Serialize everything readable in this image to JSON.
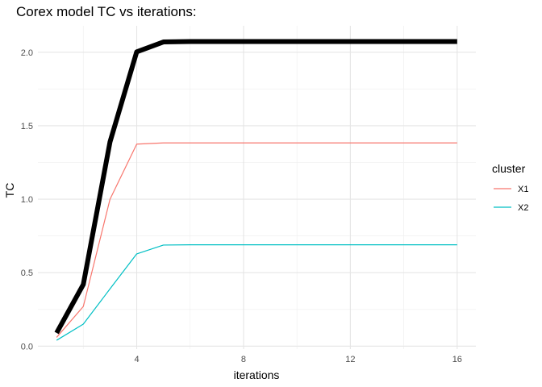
{
  "chart_data": {
    "type": "line",
    "title": "Corex model TC vs iterations:",
    "xlabel": "iterations",
    "ylabel": "TC",
    "xlim": [
      0.3,
      16.7
    ],
    "ylim": [
      -0.02,
      2.18
    ],
    "x_ticks": [
      4,
      8,
      12,
      16
    ],
    "x_tick_labels": [
      "4",
      "8",
      "12",
      "16"
    ],
    "y_ticks": [
      0,
      0.5,
      1,
      1.5,
      2
    ],
    "y_tick_labels": [
      "0.0",
      "0.5",
      "1.0",
      "1.5",
      "2.0"
    ],
    "grid": true,
    "legend": {
      "title": "cluster",
      "position": "right"
    },
    "x": [
      1,
      2,
      3,
      4,
      5,
      6,
      7,
      8,
      9,
      10,
      11,
      12,
      13,
      14,
      15,
      16
    ],
    "series": [
      {
        "name": "X1",
        "color": "#F8766D",
        "values": [
          0.06,
          0.27,
          1.0,
          1.375,
          1.383,
          1.383,
          1.383,
          1.383,
          1.383,
          1.383,
          1.383,
          1.383,
          1.383,
          1.383,
          1.383,
          1.383
        ]
      },
      {
        "name": "X2",
        "color": "#00BFC4",
        "values": [
          0.04,
          0.15,
          0.39,
          0.628,
          0.688,
          0.69,
          0.69,
          0.69,
          0.69,
          0.69,
          0.69,
          0.69,
          0.69,
          0.69,
          0.69,
          0.69
        ]
      },
      {
        "color": "#000000",
        "values": [
          0.09,
          0.42,
          1.39,
          2.003,
          2.07,
          2.073,
          2.073,
          2.073,
          2.073,
          2.073,
          2.073,
          2.073,
          2.073,
          2.073,
          2.073,
          2.073
        ]
      }
    ]
  }
}
